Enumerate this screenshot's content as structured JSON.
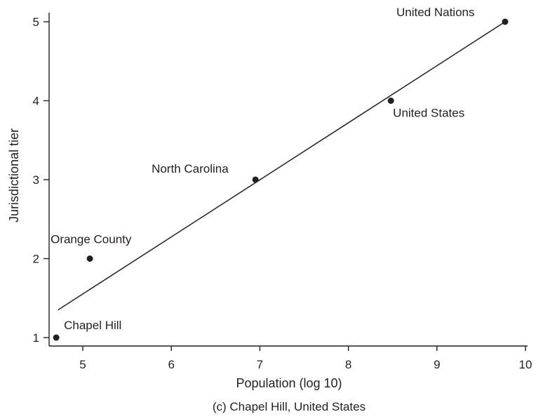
{
  "chart_data": {
    "type": "scatter",
    "title": "",
    "caption": "(c) Chapel Hill, United States",
    "xlabel": "Population (log 10)",
    "ylabel": "Jurisdictional tier",
    "xlim": [
      4.7,
      10.1
    ],
    "ylim": [
      0.9,
      5.1
    ],
    "xticks": [
      5,
      6,
      7,
      8,
      9,
      10
    ],
    "yticks": [
      1,
      2,
      3,
      4,
      5
    ],
    "grid": false,
    "points": [
      {
        "label": "Chapel Hill",
        "x": 4.7,
        "y": 1
      },
      {
        "label": "Orange County",
        "x": 5.08,
        "y": 2
      },
      {
        "label": "North Carolina",
        "x": 6.95,
        "y": 3
      },
      {
        "label": "United States",
        "x": 8.48,
        "y": 4
      },
      {
        "label": "United Nations",
        "x": 9.77,
        "y": 5
      }
    ],
    "fit_line": {
      "x": [
        4.72,
        9.77
      ],
      "y": [
        1.35,
        5.0
      ]
    }
  }
}
